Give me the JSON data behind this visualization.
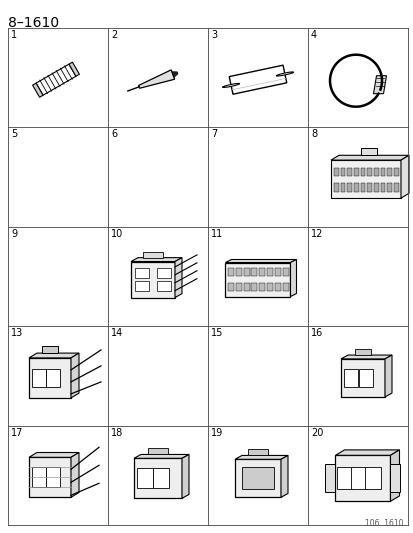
{
  "title": "8–1610",
  "fig_width": 4.14,
  "fig_height": 5.33,
  "dpi": 100,
  "bg_color": "#ffffff",
  "grid_color": "#444444",
  "text_color": "#000000",
  "cols": 4,
  "rows": 5,
  "items": [
    1,
    2,
    3,
    4,
    5,
    6,
    7,
    8,
    9,
    10,
    11,
    12,
    13,
    14,
    15,
    16,
    17,
    18,
    19,
    20
  ],
  "watermark": "106  1610",
  "title_fontsize": 10,
  "num_fontsize": 7
}
